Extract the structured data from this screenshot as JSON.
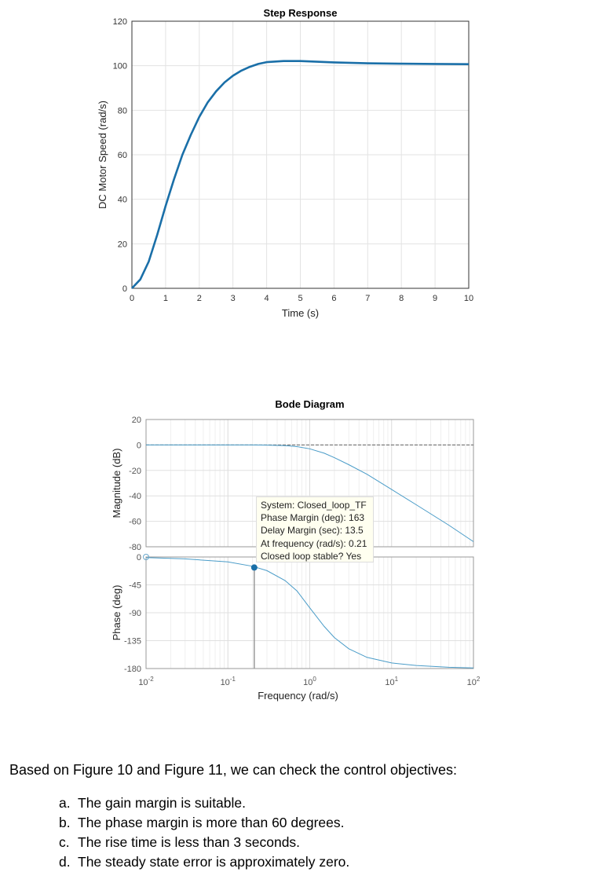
{
  "chart_data": [
    {
      "type": "line",
      "title": "Step Response",
      "xlabel": "Time (s)",
      "ylabel": "DC Motor Speed (rad/s)",
      "xlim": [
        0,
        10
      ],
      "ylim": [
        0,
        120
      ],
      "xticks": [
        "0",
        "1",
        "2",
        "3",
        "4",
        "5",
        "6",
        "7",
        "8",
        "9",
        "10"
      ],
      "yticks": [
        "0",
        "20",
        "40",
        "60",
        "80",
        "100",
        "120"
      ],
      "grid": true,
      "line_color": "#1a6fa8",
      "x": [
        0,
        0.25,
        0.5,
        0.75,
        1,
        1.25,
        1.5,
        1.75,
        2,
        2.25,
        2.5,
        2.75,
        3,
        3.25,
        3.5,
        3.75,
        4,
        4.5,
        5,
        5.5,
        6,
        7,
        8,
        9,
        10
      ],
      "y": [
        0,
        4,
        12,
        24,
        37,
        49,
        60,
        69,
        77,
        83.5,
        88.5,
        92.5,
        95.5,
        97.8,
        99.5,
        100.8,
        101.6,
        102.1,
        102.1,
        101.8,
        101.5,
        101.1,
        100.9,
        100.8,
        100.7
      ]
    },
    {
      "type": "line",
      "title": "Bode Diagram",
      "xlabel": "Frequency  (rad/s)",
      "xscale": "log",
      "xlim": [
        0.01,
        100
      ],
      "xticks": [
        {
          "base": "10",
          "exp": "-2"
        },
        {
          "base": "10",
          "exp": "-1"
        },
        {
          "base": "10",
          "exp": "0"
        },
        {
          "base": "10",
          "exp": "1"
        },
        {
          "base": "10",
          "exp": "2"
        }
      ],
      "grid": true,
      "line_color": "#4a9cc8",
      "frequency": [
        0.01,
        0.03,
        0.1,
        0.2,
        0.3,
        0.5,
        0.7,
        1,
        1.5,
        2,
        3,
        5,
        10,
        20,
        50,
        100
      ],
      "magnitude": {
        "ylabel": "Magnitude (dB)",
        "ylim": [
          -80,
          20
        ],
        "yticks": [
          "20",
          "0",
          "-20",
          "-40",
          "-60",
          "-80"
        ],
        "values": [
          0,
          0,
          0,
          0,
          -0.1,
          -0.5,
          -1.3,
          -3,
          -6.5,
          -10,
          -15.5,
          -23,
          -35,
          -47,
          -63,
          -76
        ]
      },
      "phase": {
        "ylabel": "Phase (deg)",
        "ylim": [
          -180,
          0
        ],
        "yticks": [
          "0",
          "-45",
          "-90",
          "-135",
          "-180"
        ],
        "values": [
          -1,
          -3,
          -8,
          -15,
          -22,
          -38,
          -55,
          -82,
          -112,
          -130,
          -148,
          -162,
          -171,
          -175,
          -178,
          -179
        ]
      },
      "marker": {
        "frequency": 0.21,
        "phase": -17
      },
      "annotation": [
        "System: Closed_loop_TF",
        "Phase Margin (deg): 163",
        "Delay Margin (sec): 13.5",
        "At frequency (rad/s): 0.21",
        "Closed loop stable? Yes"
      ]
    }
  ],
  "text": {
    "paragraph": "Based on Figure 10 and Figure 11, we can check the control objectives:",
    "items": [
      {
        "label": "a.",
        "text": "The gain margin is suitable."
      },
      {
        "label": "b.",
        "text": "The phase margin is more than 60 degrees."
      },
      {
        "label": "c.",
        "text": "The rise time is less than 3 seconds."
      },
      {
        "label": "d.",
        "text": "The steady state error is approximately zero."
      }
    ]
  }
}
